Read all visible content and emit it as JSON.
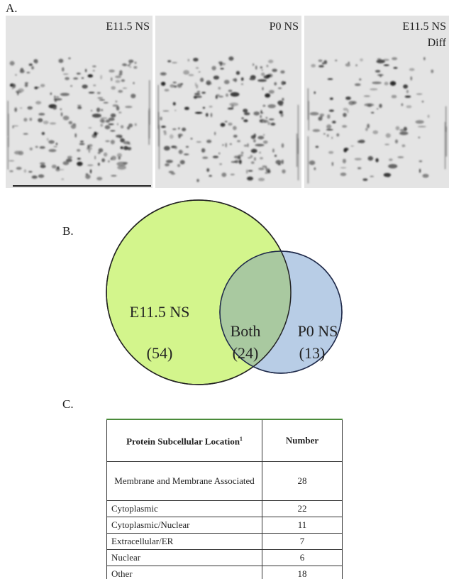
{
  "panel_a": {
    "label": "A.",
    "gels": [
      {
        "title": "E11.5 NS"
      },
      {
        "title": "P0 NS"
      },
      {
        "title": "E11.5 NS",
        "subtitle": "Diff"
      }
    ]
  },
  "panel_b": {
    "label": "B.",
    "left": {
      "name": "E11.5 NS",
      "count": "(54)"
    },
    "overlap": {
      "name": "Both",
      "count": "(24)"
    },
    "right": {
      "name": "P0 NS",
      "count": "(13)"
    }
  },
  "panel_c": {
    "label": "C.",
    "table": {
      "header": {
        "location": "Protein Subcellular Location",
        "footnote": "1",
        "number": "Number"
      },
      "rows": [
        [
          "Membrane and Membrane Associated",
          28
        ],
        [
          "Cytoplasmic",
          22
        ],
        [
          "Cytoplasmic/Nuclear",
          11
        ],
        [
          "Extracellular/ER",
          7
        ],
        [
          "Nuclear",
          6
        ],
        [
          "Other",
          18
        ]
      ]
    }
  }
}
